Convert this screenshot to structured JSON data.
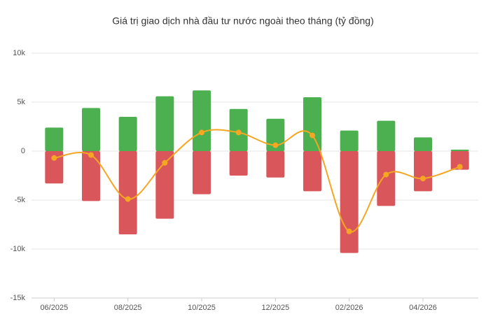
{
  "chart_data": {
    "type": "bar-line",
    "title": "Giá trị giao dịch nhà đầu tư nước ngoài theo tháng (tỷ đồng)",
    "categories": [
      "06/2025",
      null,
      "08/2025",
      null,
      "10/2025",
      null,
      "12/2025",
      null,
      "02/2026",
      null,
      "04/2026",
      null
    ],
    "series": [
      {
        "type": "bar",
        "color": "#4caf50",
        "values": [
          2400,
          4400,
          3500,
          5600,
          6200,
          4300,
          3300,
          5500,
          2100,
          3100,
          1400,
          150
        ]
      },
      {
        "type": "bar",
        "color": "#d9575b",
        "values": [
          -3300,
          -5100,
          -8500,
          -6900,
          -4400,
          -2500,
          -2700,
          -4100,
          -10400,
          -5600,
          -4100,
          -1900
        ]
      },
      {
        "type": "line",
        "color": "#f5a623",
        "values": [
          -700,
          -400,
          -4900,
          -1200,
          1900,
          1900,
          600,
          1600,
          -8200,
          -2400,
          -2800,
          -1600
        ]
      }
    ],
    "ylim": [
      -15000,
      10000
    ],
    "yticks": [
      {
        "value": -15000,
        "label": "-15k"
      },
      {
        "value": -10000,
        "label": "-10k"
      },
      {
        "value": -5000,
        "label": "-5k"
      },
      0,
      {
        "value": 5000,
        "label": "5k"
      },
      {
        "value": 10000,
        "label": "10k"
      }
    ],
    "grid": true
  }
}
